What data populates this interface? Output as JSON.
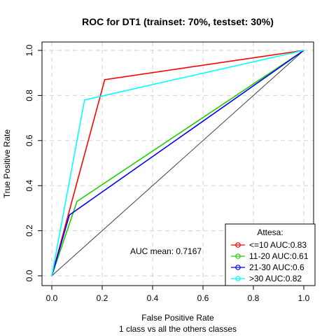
{
  "chart_data": {
    "type": "line",
    "title": "ROC for DT1 (trainset: 70%, testset: 30%)",
    "xlabel": "False Positive Rate",
    "ylabel": "True Positive Rate",
    "subtitle": "1 class vs all the others classes",
    "xlim": [
      0,
      1
    ],
    "ylim": [
      0,
      1
    ],
    "x_ticks": [
      "0.0",
      "0.2",
      "0.4",
      "0.6",
      "0.8",
      "1.0"
    ],
    "y_ticks": [
      "0.0",
      "0.2",
      "0.4",
      "0.6",
      "0.8",
      "1.0"
    ],
    "grid": true,
    "annotation": "AUC mean: 0.7167",
    "legend": {
      "title": "Attesa:",
      "placement": "bottom-right"
    },
    "diagonal": {
      "x": [
        0,
        1
      ],
      "y": [
        0,
        1
      ],
      "color": "#404040"
    },
    "series": [
      {
        "name": "<=10 AUC:0.83",
        "color": "#ff0000",
        "x": [
          0,
          0.21,
          1
        ],
        "y": [
          0,
          0.87,
          1
        ]
      },
      {
        "name": "11-20 AUC:0.61",
        "color": "#22cc00",
        "x": [
          0,
          0.1,
          1
        ],
        "y": [
          0,
          0.33,
          1
        ]
      },
      {
        "name": "21-30 AUC:0.6",
        "color": "#0000ff",
        "x": [
          0,
          0.07,
          1
        ],
        "y": [
          0,
          0.27,
          1
        ]
      },
      {
        "name": ">30 AUC:0.82",
        "color": "#00ffff",
        "x": [
          0,
          0.13,
          1
        ],
        "y": [
          0,
          0.78,
          1
        ]
      }
    ]
  }
}
